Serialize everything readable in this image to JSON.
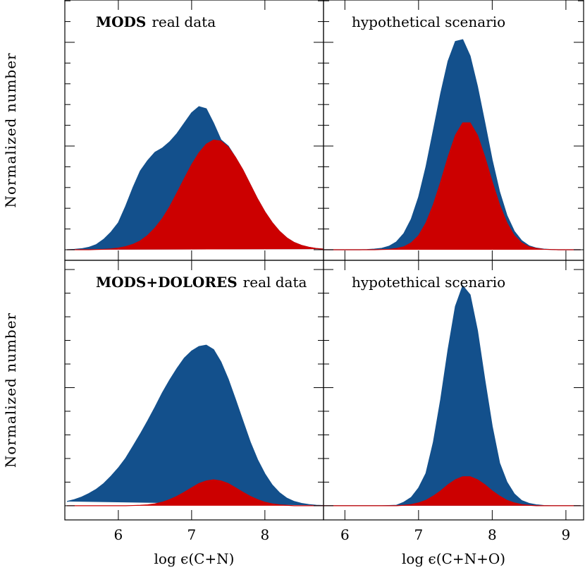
{
  "chart_data": [
    {
      "type": "area",
      "annotation": [
        "MODS",
        "real data"
      ],
      "ylabel": "Normalized number",
      "xtick_labels": false,
      "xlim": [
        5.27,
        8.8
      ],
      "ylim": [
        -0.051,
        1.204
      ],
      "xticks": [
        6,
        7,
        8
      ],
      "yticks": [
        0,
        0.1,
        0.2,
        0.3,
        0.4,
        0.5,
        0.6,
        0.7,
        0.8,
        0.9,
        1.0,
        1.1,
        1.2
      ],
      "x": [
        5.3,
        5.4,
        5.5,
        5.6,
        5.7,
        5.8,
        5.9,
        6.0,
        6.1,
        6.2,
        6.3,
        6.4,
        6.5,
        6.6,
        6.7,
        6.8,
        6.9,
        7.0,
        7.1,
        7.2,
        7.3,
        7.4,
        7.5,
        7.6,
        7.7,
        7.8,
        7.9,
        8.0,
        8.1,
        8.2,
        8.3,
        8.4,
        8.5,
        8.6,
        8.7,
        8.8
      ],
      "series": [
        {
          "color": "#13508c",
          "values": [
            0,
            0.002,
            0.005,
            0.012,
            0.025,
            0.05,
            0.085,
            0.13,
            0.21,
            0.3,
            0.38,
            0.43,
            0.47,
            0.49,
            0.52,
            0.56,
            0.61,
            0.66,
            0.69,
            0.68,
            0.61,
            0.53,
            0.5,
            0.445,
            0.385,
            0.315,
            0.245,
            0.183,
            0.131,
            0.089,
            0.057,
            0.035,
            0.021,
            0.012,
            0.006,
            0.003
          ]
        },
        {
          "color": "#cc0000",
          "values": [
            0,
            0,
            0,
            0,
            0.001,
            0.002,
            0.004,
            0.008,
            0.015,
            0.026,
            0.043,
            0.069,
            0.105,
            0.15,
            0.207,
            0.274,
            0.343,
            0.41,
            0.467,
            0.509,
            0.529,
            0.524,
            0.495,
            0.445,
            0.385,
            0.315,
            0.245,
            0.183,
            0.131,
            0.089,
            0.057,
            0.035,
            0.021,
            0.012,
            0.006,
            0.003
          ]
        }
      ]
    },
    {
      "type": "area",
      "annotation": [
        "hypothetical scenario"
      ],
      "xtick_labels": false,
      "xlim": [
        5.71,
        9.24
      ],
      "ylim": [
        -0.051,
        1.204
      ],
      "xticks": [
        6,
        7,
        8,
        9
      ],
      "yticks": [
        0,
        0.1,
        0.2,
        0.3,
        0.4,
        0.5,
        0.6,
        0.7,
        0.8,
        0.9,
        1.0,
        1.1,
        1.2
      ],
      "x": [
        5.7,
        5.8,
        5.9,
        6.0,
        6.1,
        6.2,
        6.3,
        6.4,
        6.5,
        6.6,
        6.7,
        6.8,
        6.9,
        7.0,
        7.1,
        7.2,
        7.3,
        7.4,
        7.5,
        7.6,
        7.7,
        7.8,
        7.9,
        8.0,
        8.1,
        8.2,
        8.3,
        8.4,
        8.5,
        8.6,
        8.7,
        8.8,
        8.9,
        9.0,
        9.1,
        9.2
      ],
      "series": [
        {
          "color": "#13508c",
          "values": [
            0,
            0,
            0,
            0,
            0,
            0,
            0.001,
            0.003,
            0.007,
            0.017,
            0.038,
            0.078,
            0.147,
            0.253,
            0.399,
            0.575,
            0.753,
            0.909,
            1.004,
            1.013,
            0.934,
            0.787,
            0.612,
            0.432,
            0.279,
            0.165,
            0.089,
            0.044,
            0.019,
            0.008,
            0.003,
            0.001,
            0,
            0,
            0,
            0
          ]
        },
        {
          "color": "#cc0000",
          "values": [
            0,
            0,
            0,
            0,
            0,
            0,
            0,
            0,
            0.001,
            0.002,
            0.006,
            0.014,
            0.033,
            0.068,
            0.129,
            0.217,
            0.327,
            0.447,
            0.552,
            0.612,
            0.612,
            0.552,
            0.447,
            0.327,
            0.217,
            0.129,
            0.068,
            0.033,
            0.014,
            0.006,
            0.002,
            0.001,
            0,
            0,
            0,
            0
          ]
        }
      ]
    },
    {
      "type": "area",
      "annotation": [
        "MODS+DOLORES",
        "real data"
      ],
      "ylabel": "Normalized number",
      "xlabel": "log ϵ(C+N)",
      "xtick_labels": true,
      "xlim": [
        5.27,
        8.8
      ],
      "ylim": [
        -0.06,
        1.039
      ],
      "xticks": [
        6,
        7,
        8
      ],
      "yticks": [
        0,
        0.1,
        0.2,
        0.3,
        0.4,
        0.5,
        0.6,
        0.7,
        0.8,
        0.9,
        1.0
      ],
      "x": [
        5.3,
        5.4,
        5.5,
        5.6,
        5.7,
        5.8,
        5.9,
        6.0,
        6.1,
        6.2,
        6.3,
        6.4,
        6.5,
        6.6,
        6.7,
        6.8,
        6.9,
        7.0,
        7.1,
        7.2,
        7.3,
        7.4,
        7.5,
        7.6,
        7.7,
        7.8,
        7.9,
        8.0,
        8.1,
        8.2,
        8.3,
        8.4,
        8.5,
        8.6,
        8.7,
        8.8
      ],
      "series": [
        {
          "color": "#13508c",
          "values": [
            0.018,
            0.026,
            0.037,
            0.052,
            0.07,
            0.094,
            0.125,
            0.16,
            0.201,
            0.252,
            0.304,
            0.359,
            0.417,
            0.478,
            0.532,
            0.581,
            0.625,
            0.655,
            0.674,
            0.68,
            0.661,
            0.609,
            0.536,
            0.449,
            0.359,
            0.27,
            0.195,
            0.135,
            0.088,
            0.055,
            0.032,
            0.018,
            0.01,
            0.005,
            0.002,
            0.001
          ]
        },
        {
          "color": "#cc0000",
          "values": [
            0,
            0,
            0,
            0,
            0,
            0,
            0,
            0,
            0,
            0.001,
            0.002,
            0.004,
            0.008,
            0.015,
            0.026,
            0.04,
            0.057,
            0.076,
            0.094,
            0.105,
            0.11,
            0.105,
            0.094,
            0.076,
            0.057,
            0.04,
            0.026,
            0.015,
            0.008,
            0.004,
            0.002,
            0,
            0,
            0,
            0,
            0
          ]
        }
      ]
    },
    {
      "type": "area",
      "annotation": [
        "hypotethical scenario"
      ],
      "xlabel": "log ϵ(C+N+O)",
      "xtick_labels": true,
      "xlim": [
        5.71,
        9.24
      ],
      "ylim": [
        -0.06,
        1.039
      ],
      "xticks": [
        6,
        7,
        8,
        9
      ],
      "yticks": [
        0,
        0.1,
        0.2,
        0.3,
        0.4,
        0.5,
        0.6,
        0.7,
        0.8,
        0.9,
        1.0
      ],
      "x": [
        5.7,
        5.8,
        5.9,
        6.0,
        6.1,
        6.2,
        6.3,
        6.4,
        6.5,
        6.6,
        6.7,
        6.8,
        6.9,
        7.0,
        7.1,
        7.2,
        7.3,
        7.4,
        7.5,
        7.6,
        7.7,
        7.8,
        7.9,
        8.0,
        8.1,
        8.2,
        8.3,
        8.4,
        8.5,
        8.6,
        8.7,
        8.8,
        8.9,
        9.0,
        9.1,
        9.2
      ],
      "series": [
        {
          "color": "#13508c",
          "values": [
            0,
            0,
            0,
            0,
            0,
            0,
            0,
            0,
            0,
            0.001,
            0.002,
            0.015,
            0.035,
            0.075,
            0.137,
            0.268,
            0.45,
            0.661,
            0.844,
            0.931,
            0.893,
            0.741,
            0.532,
            0.336,
            0.181,
            0.1,
            0.05,
            0.022,
            0.01,
            0.004,
            0.001,
            0,
            0,
            0,
            0,
            0
          ]
        },
        {
          "color": "#cc0000",
          "values": [
            0,
            0,
            0,
            0,
            0,
            0,
            0,
            0,
            0,
            0,
            0,
            0.002,
            0.005,
            0.012,
            0.023,
            0.041,
            0.063,
            0.089,
            0.11,
            0.123,
            0.123,
            0.11,
            0.089,
            0.063,
            0.041,
            0.023,
            0.012,
            0.005,
            0.002,
            0,
            0,
            0,
            0,
            0,
            0,
            0
          ]
        }
      ]
    }
  ]
}
